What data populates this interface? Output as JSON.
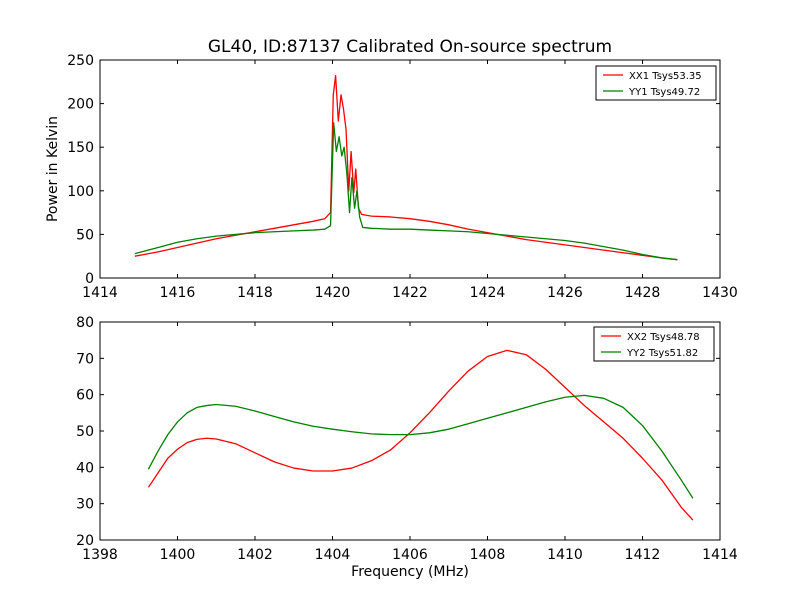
{
  "chart_data": [
    {
      "type": "line",
      "title": "GL40, ID:87137 Calibrated On-source spectrum",
      "xlabel": "",
      "ylabel": "Power in Kelvin",
      "xlim": [
        1414,
        1430
      ],
      "ylim": [
        0,
        250
      ],
      "xticks": [
        "1414",
        "1416",
        "1418",
        "1420",
        "1422",
        "1424",
        "1426",
        "1428",
        "1430"
      ],
      "yticks": [
        "0",
        "50",
        "100",
        "150",
        "200",
        "250"
      ],
      "legend_position": "top-right",
      "grid": false,
      "series": [
        {
          "name": "XX1 Tsys53.35",
          "color": "#ff0000",
          "x": [
            1414.9,
            1415.5,
            1416,
            1416.5,
            1417,
            1417.5,
            1418,
            1418.5,
            1419,
            1419.5,
            1419.8,
            1419.95,
            1420.02,
            1420.08,
            1420.15,
            1420.22,
            1420.28,
            1420.35,
            1420.42,
            1420.48,
            1420.55,
            1420.6,
            1420.67,
            1420.75,
            1421,
            1421.5,
            1422,
            1422.5,
            1423,
            1423.5,
            1424,
            1424.5,
            1425,
            1425.5,
            1426,
            1426.5,
            1427,
            1427.5,
            1428,
            1428.5,
            1428.9
          ],
          "y": [
            25,
            30,
            35,
            40,
            45,
            49,
            53,
            57,
            61,
            65,
            68,
            75,
            210,
            232,
            180,
            210,
            195,
            170,
            100,
            145,
            98,
            125,
            80,
            73,
            71,
            70,
            68,
            65,
            61,
            56,
            52,
            48,
            44,
            41,
            38,
            35,
            32,
            29,
            26,
            23,
            21
          ]
        },
        {
          "name": "YY1 Tsys49.72",
          "color": "#008000",
          "x": [
            1414.9,
            1415.5,
            1416,
            1416.5,
            1417,
            1417.5,
            1418,
            1418.5,
            1419,
            1419.5,
            1419.8,
            1419.95,
            1420.03,
            1420.1,
            1420.17,
            1420.24,
            1420.3,
            1420.37,
            1420.44,
            1420.5,
            1420.57,
            1420.63,
            1420.7,
            1420.78,
            1421,
            1421.5,
            1422,
            1422.5,
            1423,
            1423.5,
            1424,
            1424.5,
            1425,
            1425.5,
            1426,
            1426.5,
            1427,
            1427.5,
            1428,
            1428.5,
            1428.9
          ],
          "y": [
            28,
            35,
            41,
            45,
            48,
            50,
            52,
            53,
            54,
            55,
            56,
            60,
            178,
            145,
            162,
            140,
            150,
            120,
            75,
            115,
            80,
            100,
            70,
            58,
            57,
            56,
            56,
            55,
            54,
            53,
            51,
            49,
            47,
            45,
            43,
            40,
            36,
            32,
            27,
            23,
            21
          ]
        }
      ]
    },
    {
      "type": "line",
      "title": "",
      "xlabel": "Frequency (MHz)",
      "ylabel": "",
      "xlim": [
        1398,
        1414
      ],
      "ylim": [
        20,
        80
      ],
      "xticks": [
        "1398",
        "1400",
        "1402",
        "1404",
        "1406",
        "1408",
        "1410",
        "1412",
        "1414"
      ],
      "yticks": [
        "20",
        "30",
        "40",
        "50",
        "60",
        "70",
        "80"
      ],
      "legend_position": "top-right",
      "grid": false,
      "series": [
        {
          "name": "XX2 Tsys48.78",
          "color": "#ff0000",
          "x": [
            1399.25,
            1399.5,
            1399.75,
            1400,
            1400.25,
            1400.5,
            1400.75,
            1401,
            1401.5,
            1402,
            1402.5,
            1403,
            1403.5,
            1404,
            1404.5,
            1405,
            1405.5,
            1406,
            1406.5,
            1407,
            1407.5,
            1408,
            1408.5,
            1409,
            1409.5,
            1410,
            1410.5,
            1411,
            1411.5,
            1412,
            1412.5,
            1413,
            1413.3
          ],
          "y": [
            34.5,
            38.5,
            42.5,
            45,
            46.8,
            47.7,
            48,
            47.8,
            46.5,
            44,
            41.5,
            39.8,
            39,
            39,
            39.8,
            41.8,
            44.8,
            49.5,
            55,
            61,
            66.5,
            70.5,
            72.2,
            71,
            67,
            62,
            57,
            52.5,
            48,
            42.5,
            36.5,
            29,
            25.5
          ]
        },
        {
          "name": "YY2 Tsys51.82",
          "color": "#008000",
          "x": [
            1399.25,
            1399.5,
            1399.75,
            1400,
            1400.25,
            1400.5,
            1400.75,
            1401,
            1401.5,
            1402,
            1402.5,
            1403,
            1403.5,
            1404,
            1404.5,
            1405,
            1405.5,
            1406,
            1406.5,
            1407,
            1407.5,
            1408,
            1408.5,
            1409,
            1409.5,
            1410,
            1410.5,
            1411,
            1411.5,
            1412,
            1412.5,
            1413,
            1413.3
          ],
          "y": [
            39.5,
            44.5,
            49,
            52.5,
            55,
            56.5,
            57,
            57.3,
            56.8,
            55.5,
            54,
            52.5,
            51.3,
            50.5,
            49.8,
            49.2,
            49,
            49,
            49.5,
            50.5,
            52,
            53.5,
            55,
            56.5,
            58,
            59.3,
            59.8,
            59,
            56.5,
            51.5,
            44.5,
            36.5,
            31.5
          ]
        }
      ]
    }
  ]
}
